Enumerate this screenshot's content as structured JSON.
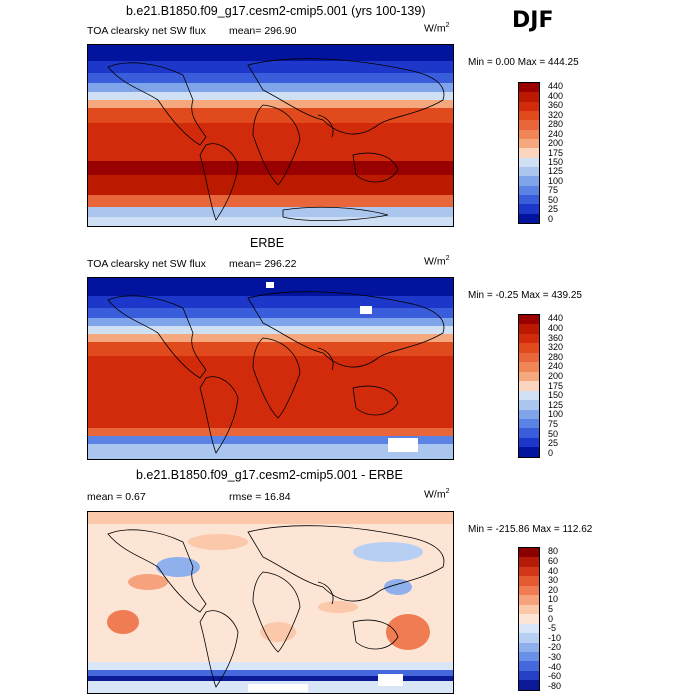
{
  "season": "DJF",
  "units": "W/m",
  "units_exp": "2",
  "panels": [
    {
      "title": "b.e21.B1850.f09_g17.cesm2-cmip5.001 (yrs 100-139)",
      "field": "TOA clearsky net SW flux",
      "stat1": "mean= 296.90",
      "stat2": "",
      "minmax": "Min =    0.00 Max = 444.25",
      "levels": [
        "440",
        "400",
        "360",
        "320",
        "280",
        "240",
        "200",
        "175",
        "150",
        "125",
        "100",
        "75",
        "50",
        "25",
        "0"
      ],
      "colors": [
        "#990000",
        "#bb1a00",
        "#d22b0c",
        "#e04a1c",
        "#e8663a",
        "#f08656",
        "#f5a87e",
        "#fbd5bd",
        "#cfe0f5",
        "#aac6ef",
        "#7fa4ea",
        "#5b83e5",
        "#3a5ddb",
        "#1c37c9",
        "#02149e"
      ]
    },
    {
      "title": "ERBE",
      "field": "TOA clearsky net SW flux",
      "stat1": "mean= 296.22",
      "stat2": "",
      "minmax": "Min =  -0.25 Max = 439.25",
      "levels": [
        "440",
        "400",
        "360",
        "320",
        "280",
        "240",
        "200",
        "175",
        "150",
        "125",
        "100",
        "75",
        "50",
        "25",
        "0"
      ],
      "colors": [
        "#990000",
        "#bb1a00",
        "#d22b0c",
        "#e04a1c",
        "#e8663a",
        "#f08656",
        "#f5a87e",
        "#fbd5bd",
        "#cfe0f5",
        "#aac6ef",
        "#7fa4ea",
        "#5b83e5",
        "#3a5ddb",
        "#1c37c9",
        "#02149e"
      ]
    },
    {
      "title": "b.e21.B1850.f09_g17.cesm2-cmip5.001 - ERBE",
      "field": "",
      "stat1": "mean =    0.67",
      "stat2": "rmse =   16.84",
      "minmax": "Min = -215.86 Max = 112.62",
      "levels": [
        "80",
        "60",
        "40",
        "30",
        "20",
        "10",
        "5",
        "0",
        "-5",
        "-10",
        "-20",
        "-30",
        "-40",
        "-60",
        "-80"
      ],
      "colors": [
        "#8b0000",
        "#b41b08",
        "#d23818",
        "#e45a30",
        "#ef7c52",
        "#f6a27c",
        "#fbc8aa",
        "#fde5d6",
        "#d8e6f8",
        "#b7cff3",
        "#8fb0ec",
        "#6a8fe6",
        "#4568dc",
        "#2440c4",
        "#0b1a96"
      ]
    }
  ],
  "chart_data": [
    {
      "type": "heatmap",
      "title": "b.e21.B1850.f09_g17.cesm2-cmip5.001 (yrs 100-139)",
      "subtitle": "TOA clearsky net SW flux",
      "units": "W/m2",
      "mean": 296.9,
      "min": 0.0,
      "max": 444.25,
      "colorbar_levels": [
        0,
        25,
        50,
        75,
        100,
        125,
        150,
        175,
        200,
        240,
        280,
        320,
        360,
        400,
        440
      ]
    },
    {
      "type": "heatmap",
      "title": "ERBE",
      "subtitle": "TOA clearsky net SW flux",
      "units": "W/m2",
      "mean": 296.22,
      "min": -0.25,
      "max": 439.25,
      "colorbar_levels": [
        0,
        25,
        50,
        75,
        100,
        125,
        150,
        175,
        200,
        240,
        280,
        320,
        360,
        400,
        440
      ]
    },
    {
      "type": "heatmap",
      "title": "b.e21.B1850.f09_g17.cesm2-cmip5.001 - ERBE",
      "units": "W/m2",
      "mean": 0.67,
      "rmse": 16.84,
      "min": -215.86,
      "max": 112.62,
      "colorbar_levels": [
        -80,
        -60,
        -40,
        -30,
        -20,
        -10,
        -5,
        0,
        5,
        10,
        20,
        30,
        40,
        60,
        80
      ]
    }
  ]
}
